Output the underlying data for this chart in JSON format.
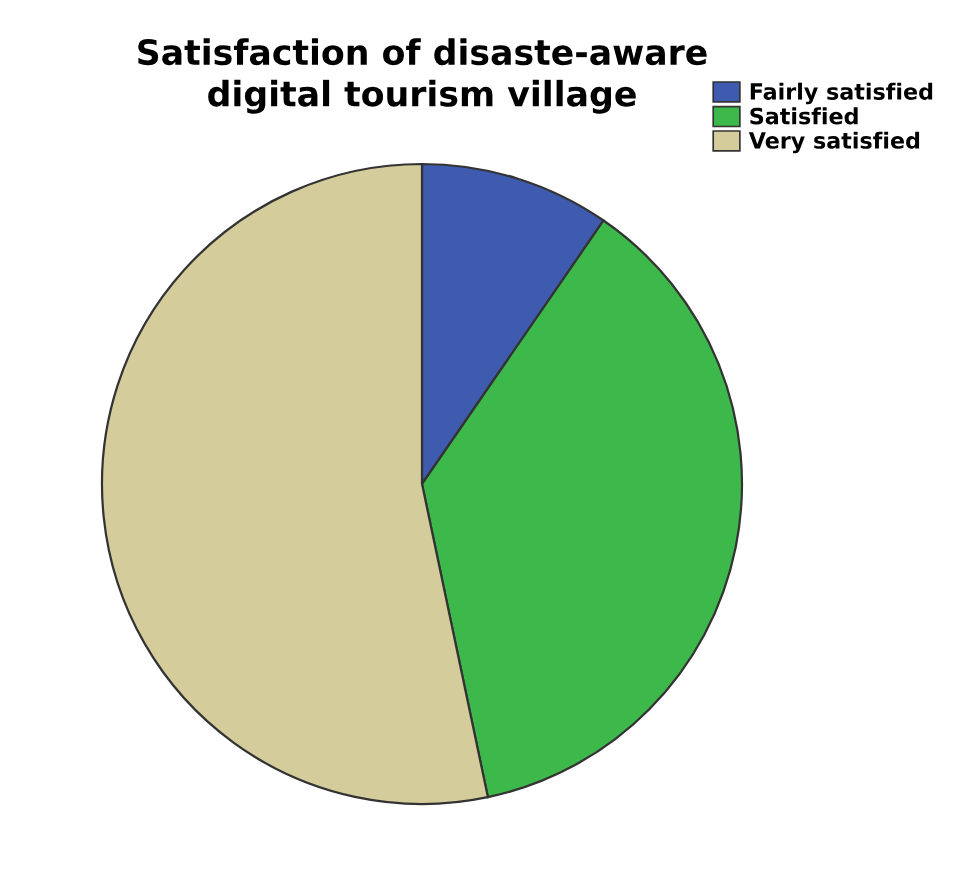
{
  "chart_data": {
    "type": "pie",
    "title": "Satisfaction of disaste-aware digital tourism village",
    "categories": [
      "Fairly satisfied",
      "Satisfied",
      "Very satisfied"
    ],
    "values": [
      9.6,
      37.1,
      53.3
    ],
    "colors": [
      "#3f5bb0",
      "#3cb94a",
      "#d4cc9b"
    ],
    "legend": "top right"
  }
}
